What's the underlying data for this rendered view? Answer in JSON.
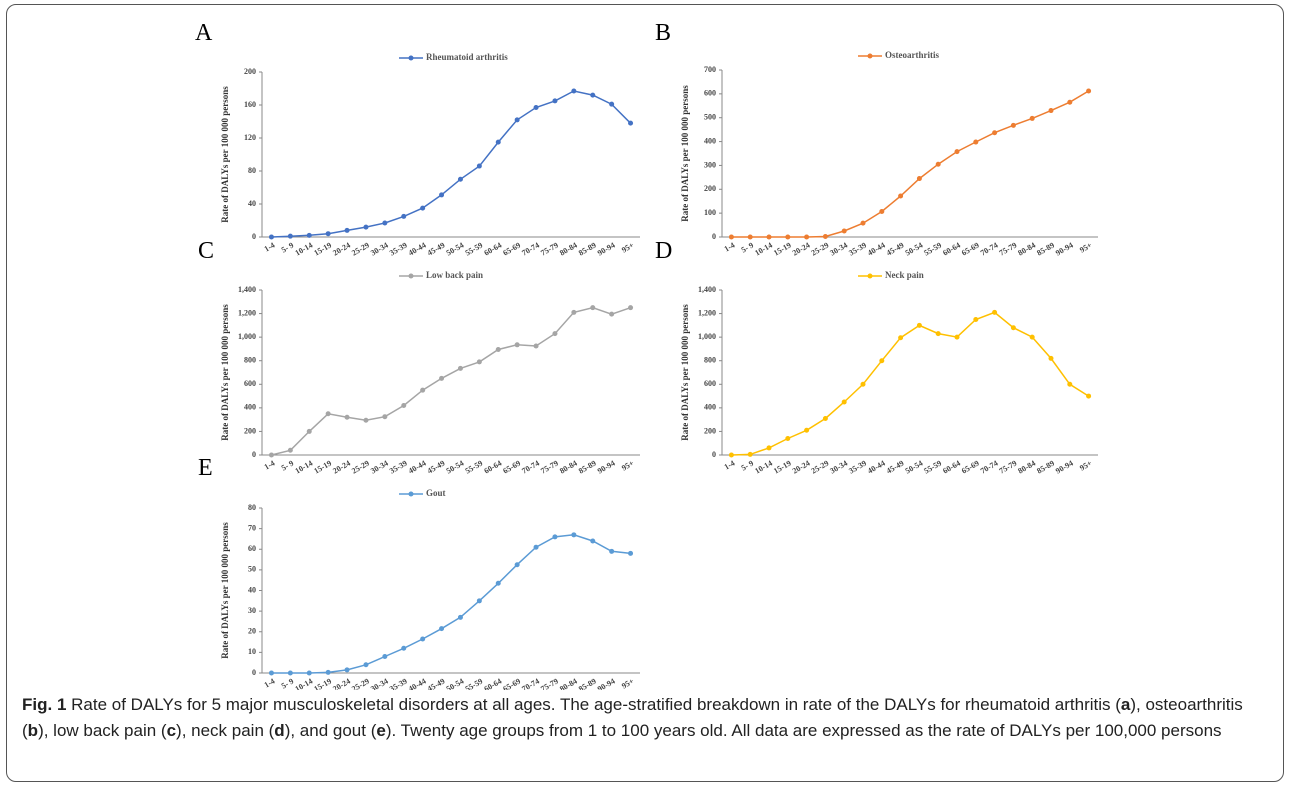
{
  "chart_data": [
    {
      "type": "line",
      "panel": "A",
      "ylabel": "Rate of DALYs per 100 000 persons",
      "categories": [
        "1-4",
        "5- 9",
        "10-14",
        "15-19",
        "20-24",
        "25-29",
        "30-34",
        "35-39",
        "40-44",
        "45-49",
        "50-54",
        "55-59",
        "60-64",
        "65-69",
        "70-74",
        "75-79",
        "80-84",
        "85-89",
        "90-94",
        "95+"
      ],
      "series": [
        {
          "name": "Rheumatoid arthritis",
          "color": "#4472c4",
          "values": [
            0,
            1,
            2,
            4,
            8,
            12,
            17,
            25,
            35,
            51,
            70,
            86,
            115,
            142,
            157,
            165,
            177,
            172,
            161,
            138
          ]
        }
      ],
      "ylim": [
        0,
        200
      ],
      "yticks": [
        0,
        40,
        80,
        120,
        160,
        200
      ]
    },
    {
      "type": "line",
      "panel": "B",
      "ylabel": "Rate of DALYs per 100 000 persons",
      "categories": [
        "1-4",
        "5- 9",
        "10-14",
        "15-19",
        "20-24",
        "25-29",
        "30-34",
        "35-39",
        "40-44",
        "45-49",
        "50-54",
        "55-59",
        "60-64",
        "65-69",
        "70-74",
        "75-79",
        "80-84",
        "85-89",
        "90-94",
        "95+"
      ],
      "series": [
        {
          "name": "Osteoarthritis",
          "color": "#ed7d31",
          "values": [
            0,
            0,
            0,
            0,
            0,
            2,
            25,
            58,
            107,
            172,
            245,
            305,
            358,
            398,
            437,
            468,
            497,
            530,
            565,
            612
          ]
        }
      ],
      "ylim": [
        0,
        700
      ],
      "yticks": [
        0,
        100,
        200,
        300,
        400,
        500,
        600,
        700
      ]
    },
    {
      "type": "line",
      "panel": "C",
      "ylabel": "Rate of DALYs per 100 000 persons",
      "categories": [
        "1-4",
        "5- 9",
        "10-14",
        "15-19",
        "20-24",
        "25-29",
        "30-34",
        "35-39",
        "40-44",
        "45-49",
        "50-54",
        "55-59",
        "60-64",
        "65-69",
        "70-74",
        "75-79",
        "80-84",
        "85-89",
        "90-94",
        "95+"
      ],
      "series": [
        {
          "name": "Low back pain",
          "color": "#a5a5a5",
          "values": [
            0,
            40,
            200,
            350,
            320,
            295,
            325,
            420,
            550,
            650,
            735,
            790,
            895,
            935,
            925,
            1030,
            1210,
            1250,
            1195,
            1250
          ]
        }
      ],
      "ylim": [
        0,
        1400
      ],
      "yticks": [
        0,
        200,
        400,
        600,
        800,
        {
          "value": 1000,
          "label": "1,000"
        },
        {
          "value": 1200,
          "label": "1,200"
        },
        {
          "value": 1400,
          "label": "1,400"
        }
      ]
    },
    {
      "type": "line",
      "panel": "D",
      "ylabel": "Rate of DALYs per 100 000 persons",
      "categories": [
        "1-4",
        "5- 9",
        "10-14",
        "15-19",
        "20-24",
        "25-29",
        "30-34",
        "35-39",
        "40-44",
        "45-49",
        "50-54",
        "55-59",
        "60-64",
        "65-69",
        "70-74",
        "75-79",
        "80-84",
        "85-89",
        "90-94",
        "95+"
      ],
      "series": [
        {
          "name": "Neck pain",
          "color": "#ffc000",
          "values": [
            0,
            5,
            60,
            140,
            210,
            310,
            450,
            600,
            800,
            995,
            1100,
            1030,
            1000,
            1150,
            1210,
            1080,
            1000,
            820,
            600,
            500
          ]
        }
      ],
      "ylim": [
        0,
        1400
      ],
      "yticks": [
        0,
        200,
        400,
        600,
        800,
        {
          "value": 1000,
          "label": "1,000"
        },
        {
          "value": 1200,
          "label": "1,200"
        },
        {
          "value": 1400,
          "label": "1,400"
        }
      ]
    },
    {
      "type": "line",
      "panel": "E",
      "ylabel": "Rate of DALYs per 100 000 persons",
      "categories": [
        "1-4",
        "5- 9",
        "10-14",
        "15-19",
        "20-24",
        "25-29",
        "30-34",
        "35-39",
        "40-44",
        "45-49",
        "50-54",
        "55-59",
        "60-64",
        "65-69",
        "70-74",
        "75-79",
        "80-84",
        "85-89",
        "90-94",
        "95+"
      ],
      "series": [
        {
          "name": "Gout",
          "color": "#5b9bd5",
          "values": [
            0,
            0,
            0,
            0.3,
            1.5,
            4,
            8,
            12,
            16.5,
            21.5,
            27,
            35,
            43.5,
            52.5,
            61,
            66,
            67,
            64,
            59,
            58
          ]
        }
      ],
      "ylim": [
        0,
        80
      ],
      "yticks": [
        0,
        10,
        20,
        30,
        40,
        50,
        60,
        70,
        80
      ]
    }
  ],
  "caption": {
    "segments": [
      {
        "text": "Fig. 1",
        "bold": true
      },
      {
        "text": " Rate of DALYs for 5 major musculoskeletal disorders at all ages. The age-stratified breakdown in rate of the DALYs for rheumatoid arthritis (",
        "bold": false
      },
      {
        "text": "a",
        "bold": true
      },
      {
        "text": "), osteoarthritis (",
        "bold": false
      },
      {
        "text": "b",
        "bold": true
      },
      {
        "text": "), low back pain (",
        "bold": false
      },
      {
        "text": "c",
        "bold": true
      },
      {
        "text": "), neck pain (",
        "bold": false
      },
      {
        "text": "d",
        "bold": true
      },
      {
        "text": "), and gout (",
        "bold": false
      },
      {
        "text": "e",
        "bold": true
      },
      {
        "text": "). Twenty age groups from 1 to 100 years old. All data are expressed as the rate of DALYs per 100,000 persons",
        "bold": false
      }
    ]
  }
}
